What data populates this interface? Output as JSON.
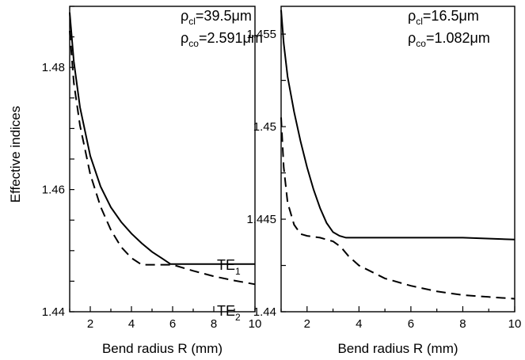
{
  "ylabel": "Effective indices",
  "chart_data": [
    {
      "type": "line",
      "xlabel": "Bend radius R (mm)",
      "ylabel": "Effective indices",
      "xlim": [
        1,
        10
      ],
      "ylim": [
        1.44,
        1.49
      ],
      "xticks": [
        "2",
        "4",
        "6",
        "8",
        "10"
      ],
      "yticks": [
        "1.44",
        "1.46",
        "1.48"
      ],
      "annotation_line1": {
        "symbol": "ρ",
        "sub": "cl",
        "text": "=39.5μm"
      },
      "annotation_line2": {
        "symbol": "ρ",
        "sub": "co",
        "text": "=2.591μm"
      },
      "series": [
        {
          "name": "TE₁",
          "label_main": "TE",
          "label_sub": "1",
          "style": "solid",
          "x": [
            1.0,
            1.2,
            1.5,
            2.0,
            2.5,
            3.0,
            3.5,
            4.0,
            4.5,
            5.0,
            5.5,
            5.9,
            6.0,
            7.0,
            8.0,
            9.0,
            10.0
          ],
          "y": [
            1.489,
            1.481,
            1.4735,
            1.4655,
            1.4605,
            1.4571,
            1.4547,
            1.4528,
            1.4512,
            1.4498,
            1.4487,
            1.4478,
            1.4478,
            1.4478,
            1.4478,
            1.4478,
            1.4478
          ]
        },
        {
          "name": "TE₂",
          "label_main": "TE",
          "label_sub": "2",
          "style": "dashed",
          "x": [
            1.0,
            1.2,
            1.5,
            2.0,
            2.5,
            3.0,
            3.5,
            4.0,
            4.5,
            5.0,
            6.0,
            7.0,
            8.0,
            9.0,
            10.0
          ],
          "y": [
            1.486,
            1.4775,
            1.4705,
            1.4625,
            1.4572,
            1.4534,
            1.4506,
            1.4488,
            1.4477,
            1.4477,
            1.4477,
            1.4467,
            1.4458,
            1.4451,
            1.4445
          ]
        }
      ]
    },
    {
      "type": "line",
      "xlabel": "Bend radius R (mm)",
      "ylabel": "",
      "xlim": [
        1,
        10
      ],
      "ylim": [
        1.44,
        1.4565
      ],
      "xticks": [
        "2",
        "4",
        "6",
        "8",
        "10"
      ],
      "yticks": [
        "1.44",
        "1.445",
        "1.45",
        "1.455"
      ],
      "annotation_line1": {
        "symbol": "ρ",
        "sub": "cl",
        "text": "=16.5μm"
      },
      "annotation_line2": {
        "symbol": "ρ",
        "sub": "co",
        "text": "=1.082μm"
      },
      "series": [
        {
          "style": "solid",
          "x": [
            1.0,
            1.1,
            1.25,
            1.5,
            1.75,
            2.0,
            2.25,
            2.5,
            2.75,
            3.0,
            3.25,
            3.5,
            4.0,
            5.0,
            6.0,
            8.0,
            10.0
          ],
          "y": [
            1.4563,
            1.4545,
            1.4527,
            1.4508,
            1.4492,
            1.4478,
            1.4466,
            1.4456,
            1.4448,
            1.4443,
            1.4441,
            1.444,
            1.444,
            1.444,
            1.444,
            1.444,
            1.4439
          ]
        },
        {
          "style": "dashed",
          "x": [
            1.0,
            1.1,
            1.25,
            1.5,
            1.75,
            2.0,
            2.5,
            3.0,
            3.3,
            3.6,
            4.0,
            5.0,
            6.0,
            7.0,
            8.0,
            9.0,
            10.0
          ],
          "y": [
            1.4505,
            1.4478,
            1.4459,
            1.4447,
            1.4442,
            1.4441,
            1.444,
            1.4438,
            1.4435,
            1.443,
            1.4425,
            1.4418,
            1.4414,
            1.4411,
            1.4409,
            1.4408,
            1.4407
          ]
        }
      ]
    }
  ]
}
